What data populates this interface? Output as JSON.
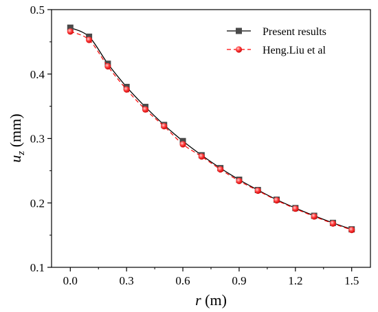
{
  "chart_data": {
    "type": "line",
    "xlabel": {
      "symbol": "r",
      "unit": " (m)"
    },
    "ylabel": {
      "symbol": "u",
      "subscript": "z",
      "unit": " (mm)"
    },
    "xlim": [
      -0.1,
      1.6
    ],
    "ylim": [
      0.1,
      0.5
    ],
    "xticks": [
      "0.0",
      "0.3",
      "0.6",
      "0.9",
      "1.2",
      "1.5"
    ],
    "xtick_values": [
      0.0,
      0.3,
      0.6,
      0.9,
      1.2,
      1.5
    ],
    "yticks": [
      "0.1",
      "0.2",
      "0.3",
      "0.4",
      "0.5"
    ],
    "ytick_values": [
      0.1,
      0.2,
      0.3,
      0.4,
      0.5
    ],
    "grid": false,
    "legend_position": "top-right",
    "series": [
      {
        "name": "Present results",
        "color": "#000000",
        "marker": "square",
        "marker_color": "#4a4a4a",
        "line_style": "solid",
        "x": [
          0.0,
          0.1,
          0.2,
          0.3,
          0.4,
          0.5,
          0.6,
          0.7,
          0.8,
          0.9,
          1.0,
          1.1,
          1.2,
          1.3,
          1.4,
          1.5
        ],
        "y": [
          0.472,
          0.458,
          0.416,
          0.38,
          0.349,
          0.321,
          0.296,
          0.274,
          0.254,
          0.236,
          0.22,
          0.205,
          0.192,
          0.18,
          0.169,
          0.159
        ]
      },
      {
        "name": "Heng.Liu et al",
        "color": "#ff0000",
        "marker": "circle",
        "marker_color": "#ff3b3b",
        "line_style": "dashed",
        "x": [
          0.0,
          0.1,
          0.2,
          0.3,
          0.4,
          0.5,
          0.6,
          0.7,
          0.8,
          0.9,
          1.0,
          1.1,
          1.2,
          1.3,
          1.4,
          1.5
        ],
        "y": [
          0.466,
          0.453,
          0.412,
          0.376,
          0.345,
          0.319,
          0.291,
          0.272,
          0.252,
          0.234,
          0.219,
          0.204,
          0.191,
          0.179,
          0.168,
          0.158
        ]
      }
    ]
  }
}
